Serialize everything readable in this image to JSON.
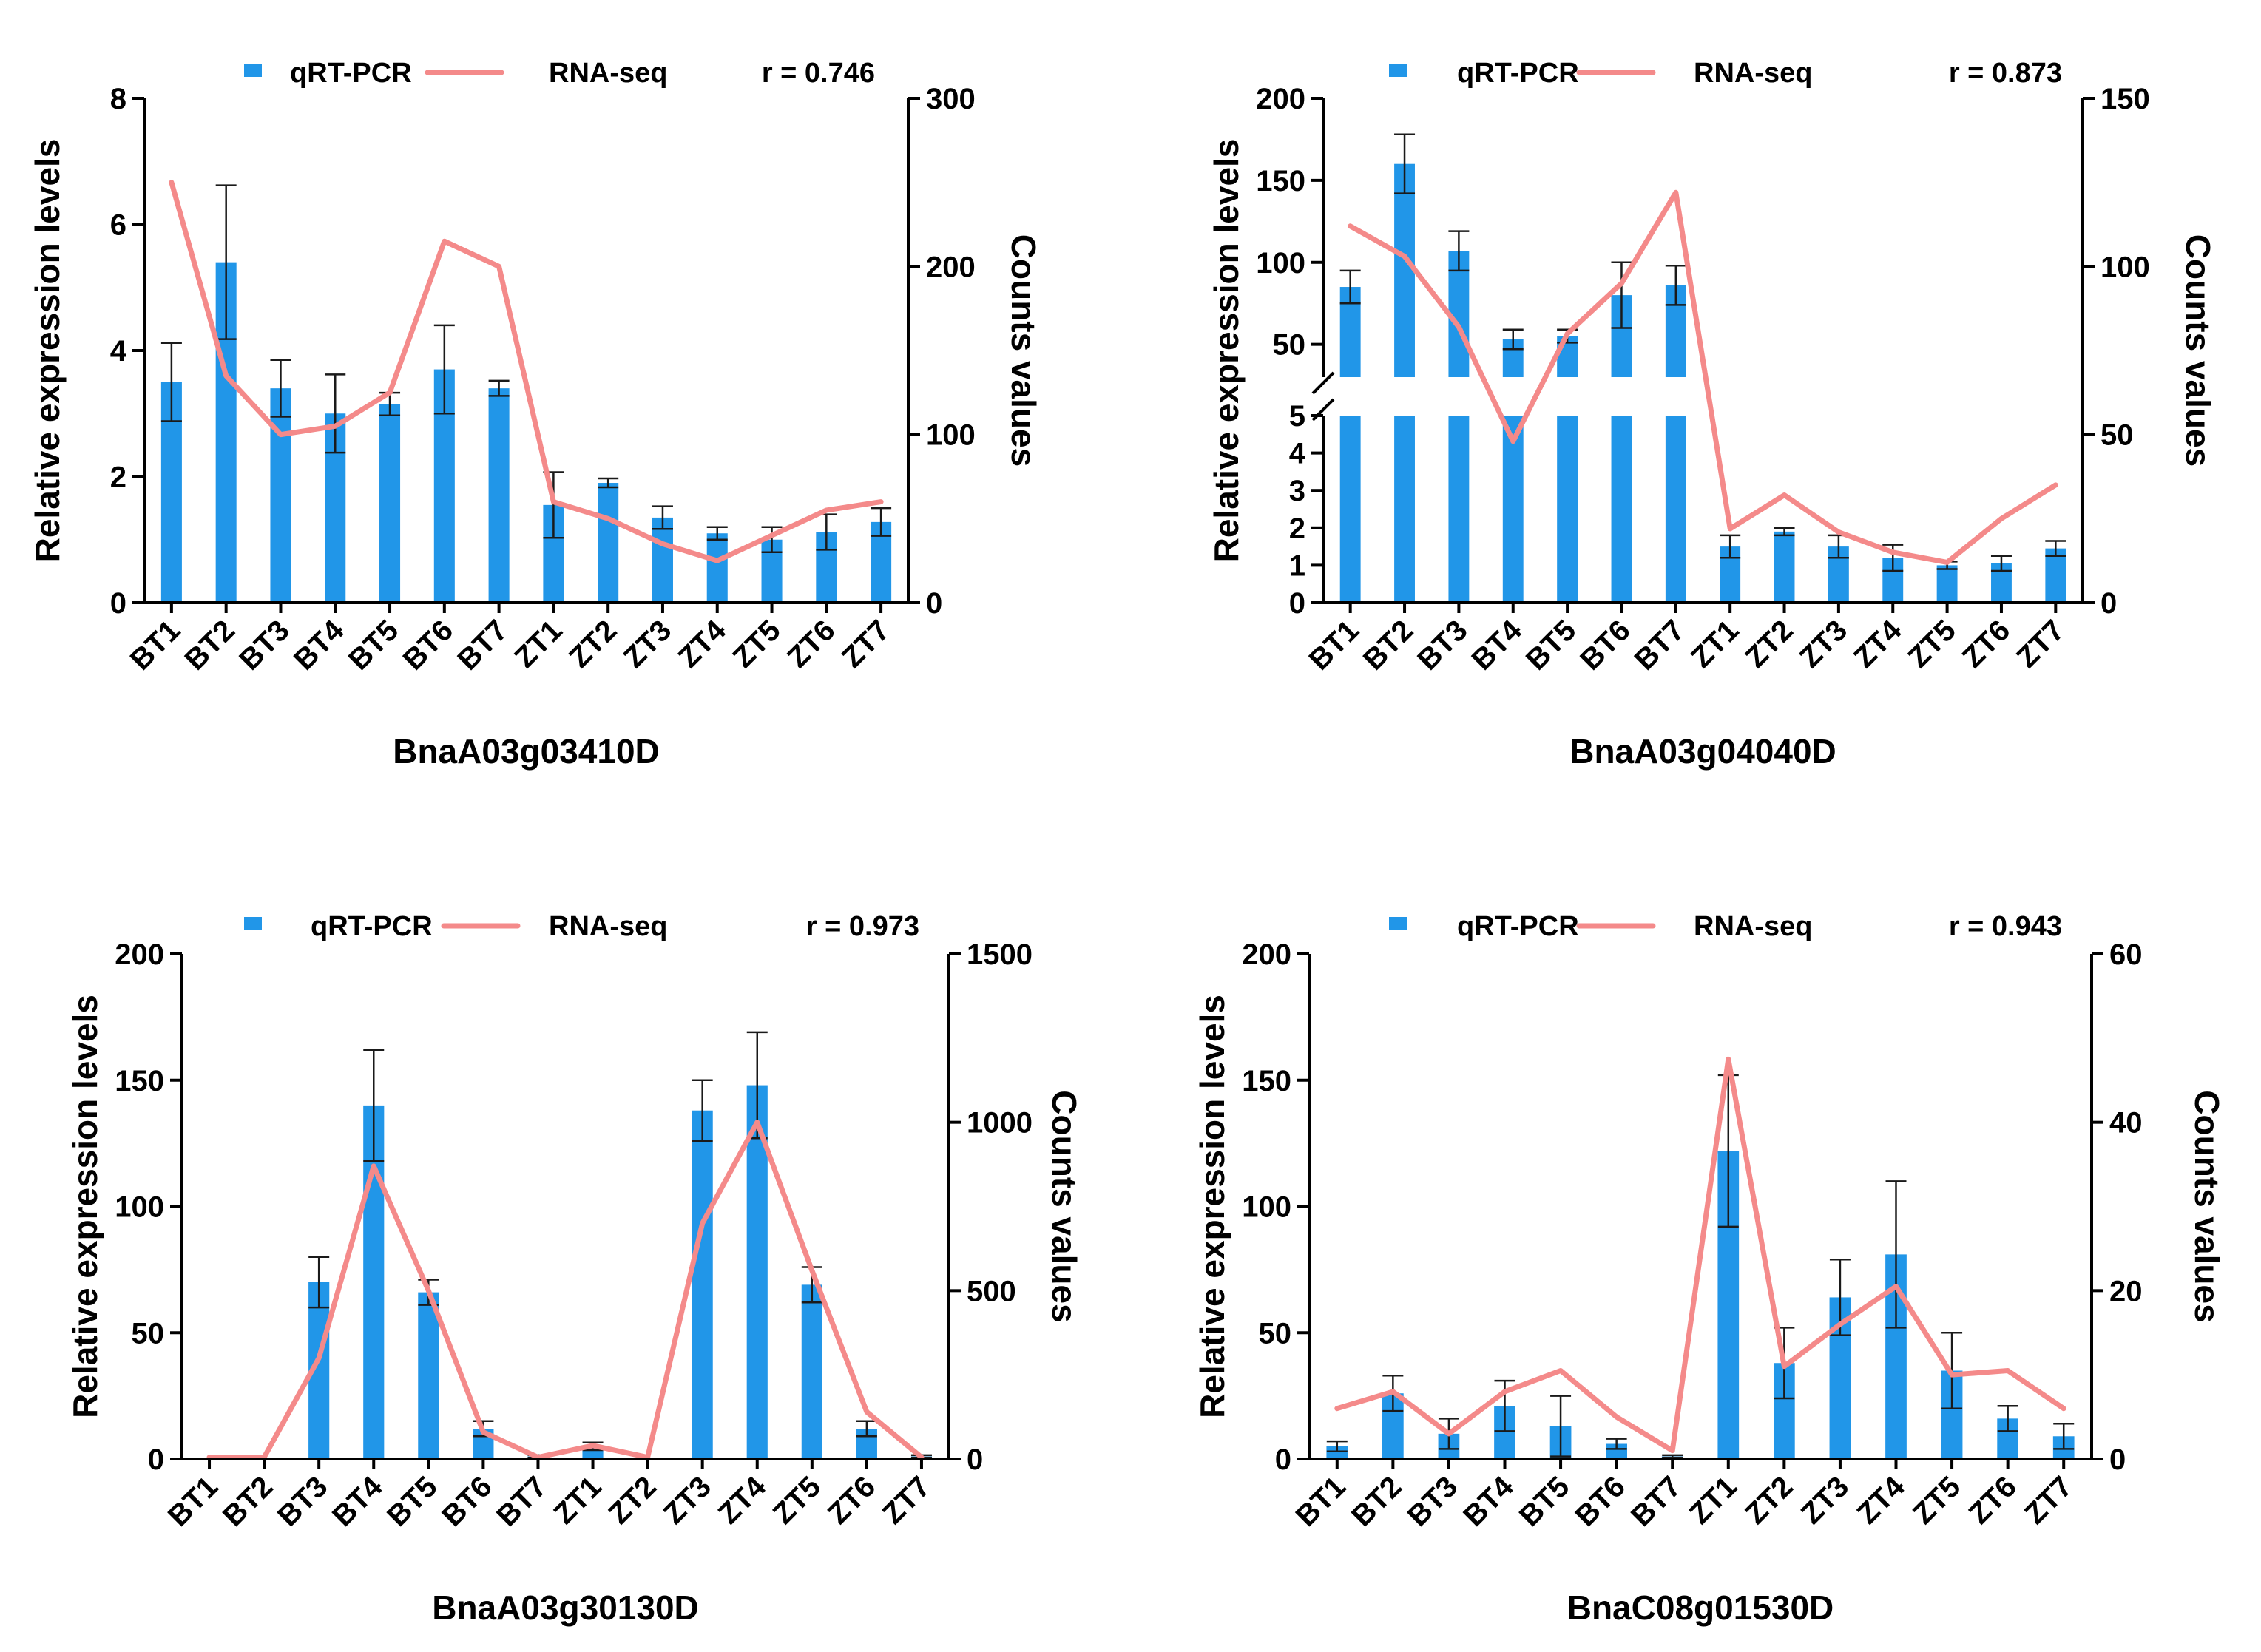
{
  "colors": {
    "bar": "#2196e8",
    "line": "#f48a8a",
    "axis": "#000000",
    "error": "#1a1a1a"
  },
  "legend": {
    "bar_label": "qRT-PCR",
    "line_label": "RNA-seq"
  },
  "chart_data": [
    {
      "type": "bar",
      "title": "BnaA03g03410D",
      "r_label": "r = 0.746",
      "ylabel": "Relative expression levels",
      "y2label": "Counts values",
      "categories": [
        "BT1",
        "BT2",
        "BT3",
        "BT4",
        "BT5",
        "BT6",
        "BT7",
        "ZT1",
        "ZT2",
        "ZT3",
        "ZT4",
        "ZT5",
        "ZT6",
        "ZT7"
      ],
      "ylim": [
        0,
        8
      ],
      "yticks": [
        0,
        2,
        4,
        6,
        8
      ],
      "y2lim": [
        0,
        300
      ],
      "y2ticks": [
        0,
        100,
        200,
        300
      ],
      "series": [
        {
          "name": "qRT-PCR",
          "type": "bar",
          "axis": "left",
          "values": [
            3.5,
            5.4,
            3.4,
            3.0,
            3.15,
            3.7,
            3.4,
            1.55,
            1.9,
            1.35,
            1.1,
            1.0,
            1.12,
            1.28
          ],
          "errors": [
            0.62,
            1.22,
            0.45,
            0.62,
            0.18,
            0.7,
            0.12,
            0.52,
            0.07,
            0.18,
            0.1,
            0.2,
            0.28,
            0.22
          ]
        },
        {
          "name": "RNA-seq",
          "type": "line",
          "axis": "right",
          "values": [
            250,
            135,
            100,
            105,
            125,
            215,
            200,
            60,
            50,
            35,
            25,
            40,
            55,
            60
          ]
        }
      ]
    },
    {
      "type": "bar",
      "title": "BnaA03g04040D",
      "r_label": "r = 0.873",
      "ylabel": "Relative expression levels",
      "y2label": "Counts values",
      "categories": [
        "BT1",
        "BT2",
        "BT3",
        "BT4",
        "BT5",
        "BT6",
        "BT7",
        "ZT1",
        "ZT2",
        "ZT3",
        "ZT4",
        "ZT5",
        "ZT6",
        "ZT7"
      ],
      "broken_axis": {
        "lower": [
          0,
          5
        ],
        "upper": [
          30,
          200
        ],
        "lower_ticks": [
          0,
          1,
          2,
          3,
          4,
          5
        ],
        "upper_ticks": [
          50,
          100,
          150,
          200
        ]
      },
      "y2lim": [
        0,
        150
      ],
      "y2ticks": [
        0,
        50,
        100,
        150
      ],
      "series": [
        {
          "name": "qRT-PCR",
          "type": "bar",
          "axis": "left",
          "values": [
            85,
            160,
            107,
            53,
            55,
            80,
            86,
            1.5,
            1.9,
            1.5,
            1.2,
            1.0,
            1.05,
            1.45
          ],
          "errors": [
            10,
            18,
            12,
            6,
            4,
            20,
            12,
            0.3,
            0.1,
            0.3,
            0.35,
            0.1,
            0.2,
            0.2
          ]
        },
        {
          "name": "RNA-seq",
          "type": "line",
          "axis": "right",
          "values": [
            112,
            103,
            82,
            48,
            80,
            95,
            122,
            22,
            32,
            21,
            15,
            12,
            25,
            35
          ]
        }
      ]
    },
    {
      "type": "bar",
      "title": "BnaA03g30130D",
      "r_label": "r = 0.973",
      "ylabel": "Relative expression levels",
      "y2label": "Counts values",
      "categories": [
        "BT1",
        "BT2",
        "BT3",
        "BT4",
        "BT5",
        "BT6",
        "BT7",
        "ZT1",
        "ZT2",
        "ZT3",
        "ZT4",
        "ZT5",
        "ZT6",
        "ZT7"
      ],
      "ylim": [
        0,
        200
      ],
      "yticks": [
        0,
        50,
        100,
        150,
        200
      ],
      "y2lim": [
        0,
        1500
      ],
      "y2ticks": [
        0,
        500,
        1000,
        1500
      ],
      "series": [
        {
          "name": "qRT-PCR",
          "type": "bar",
          "axis": "left",
          "values": [
            0,
            0,
            70,
            140,
            66,
            12,
            1,
            5,
            0,
            138,
            148,
            69,
            12,
            1
          ],
          "errors": [
            0,
            0,
            10,
            22,
            5,
            3,
            0.5,
            1.5,
            0,
            12,
            21,
            7,
            3,
            0.5
          ]
        },
        {
          "name": "RNA-seq",
          "type": "line",
          "axis": "right",
          "values": [
            5,
            5,
            300,
            870,
            500,
            80,
            5,
            40,
            5,
            700,
            1000,
            560,
            140,
            5
          ]
        }
      ]
    },
    {
      "type": "bar",
      "title": "BnaC08g01530D",
      "r_label": "r = 0.943",
      "ylabel": "Relative expression levels",
      "y2label": "Counts values",
      "categories": [
        "BT1",
        "BT2",
        "BT3",
        "BT4",
        "BT5",
        "BT6",
        "BT7",
        "ZT1",
        "ZT2",
        "ZT3",
        "ZT4",
        "ZT5",
        "ZT6",
        "ZT7"
      ],
      "ylim": [
        0,
        200
      ],
      "yticks": [
        0,
        50,
        100,
        150,
        200
      ],
      "y2lim": [
        0,
        60
      ],
      "y2ticks": [
        0,
        20,
        40,
        60
      ],
      "series": [
        {
          "name": "qRT-PCR",
          "type": "bar",
          "axis": "left",
          "values": [
            5,
            26,
            10,
            21,
            13,
            6,
            1,
            122,
            38,
            64,
            81,
            35,
            16,
            9
          ],
          "errors": [
            2,
            7,
            6,
            10,
            12,
            2,
            0.5,
            30,
            14,
            15,
            29,
            15,
            5,
            5
          ]
        },
        {
          "name": "RNA-seq",
          "type": "line",
          "axis": "right",
          "values": [
            6,
            8,
            3,
            8,
            10.5,
            5,
            1,
            47.5,
            11,
            16,
            20.5,
            10,
            10.5,
            6
          ]
        }
      ]
    }
  ]
}
